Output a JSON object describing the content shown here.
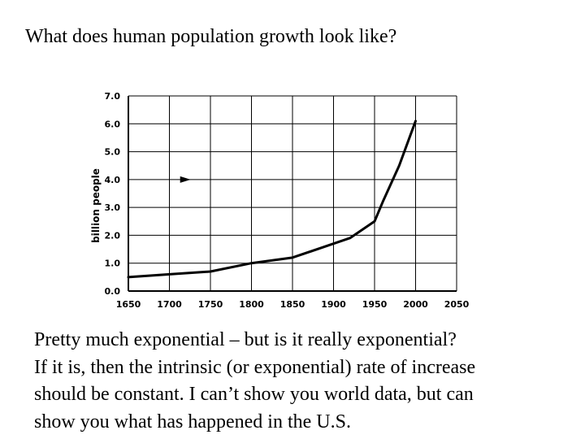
{
  "slide": {
    "title": "What does human population growth look like?",
    "body_lines": [
      "Pretty much exponential – but is it really exponential?",
      "If it is, then the intrinsic (or exponential) rate of increase",
      "should be constant. I can’t show you world data, but can",
      "show you what has happened in the U.S."
    ]
  },
  "chart_data": {
    "type": "line",
    "title": "",
    "xlabel": "",
    "ylabel": "billion people",
    "x_ticks": [
      "1650",
      "1700",
      "1750",
      "1800",
      "1850",
      "1900",
      "1950",
      "2000",
      "2050"
    ],
    "y_ticks": [
      "0.0",
      "1.0",
      "2.0",
      "3.0",
      "4.0",
      "5.0",
      "6.0",
      "7.0"
    ],
    "xlim": [
      1650,
      2050
    ],
    "ylim": [
      0,
      7
    ],
    "grid": true,
    "series": [
      {
        "x": [
          1650,
          1700,
          1750,
          1800,
          1850,
          1900,
          1920,
          1950,
          1960,
          1980,
          2000
        ],
        "y": [
          0.5,
          0.6,
          0.7,
          1.0,
          1.2,
          1.7,
          1.9,
          2.5,
          3.2,
          4.5,
          6.1
        ]
      }
    ],
    "annotations": [
      {
        "type": "arrow",
        "x": 1720,
        "y": 4.0
      }
    ]
  }
}
